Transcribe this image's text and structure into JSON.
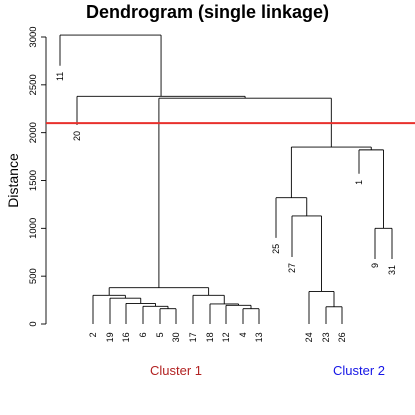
{
  "chart_data": {
    "type": "dendrogram",
    "title": "Dendrogram (single linkage)",
    "ylabel": "Distance",
    "xlabel": "",
    "ylim": [
      0,
      3000
    ],
    "yticks": [
      0,
      500,
      1000,
      1500,
      2000,
      2500,
      3000
    ],
    "grid": false,
    "cut_height": 2100,
    "cut_color": "#e8302c",
    "leaf_order": [
      "11",
      "20",
      "2",
      "19",
      "16",
      "6",
      "5",
      "30",
      "17",
      "18",
      "12",
      "4",
      "13",
      "25",
      "27",
      "24",
      "23",
      "26",
      "1",
      "9",
      "31"
    ],
    "merges": [
      {
        "left": "4",
        "right": "13",
        "height": 160
      },
      {
        "left": "5",
        "right": "30",
        "height": 160
      },
      {
        "left": "23",
        "right": "26",
        "height": 180
      },
      {
        "left": "6",
        "right": "5+30",
        "height": 185
      },
      {
        "left": "12",
        "right": "4+13",
        "height": 195
      },
      {
        "left": "18",
        "right": "12+4+13",
        "height": 210
      },
      {
        "left": "16",
        "right": "6+5+30",
        "height": 215
      },
      {
        "left": "19",
        "right": "16+6+5+30",
        "height": 270
      },
      {
        "left": "17",
        "right": "18+12+4+13",
        "height": 300
      },
      {
        "left": "2",
        "right": "19+16+6+5+30",
        "height": 300
      },
      {
        "left": "24",
        "right": "23+26",
        "height": 340
      },
      {
        "left": "Cluster-1-left",
        "right": "Cluster-1-right",
        "height": 380
      },
      {
        "left": "9",
        "right": "31",
        "height": 1000
      },
      {
        "left": "27",
        "right": "24+23+26",
        "height": 1130
      },
      {
        "left": "25",
        "right": "27+24+23+26",
        "height": 1320
      },
      {
        "left": "1",
        "right": "9+31",
        "height": 1820
      },
      {
        "left": "Cluster-2-left",
        "right": "Cluster-2-right",
        "height": 1850
      },
      {
        "left": "Cluster 1",
        "right": "Cluster 2",
        "height": 2360
      },
      {
        "left": "20",
        "right": "Cluster 1+2",
        "height": 2380
      },
      {
        "left": "11",
        "right": "20+rest",
        "height": 3020
      }
    ],
    "clusters": [
      {
        "label": "Cluster 1",
        "color": "#b22222"
      },
      {
        "label": "Cluster 2",
        "color": "#1515e6"
      }
    ]
  }
}
